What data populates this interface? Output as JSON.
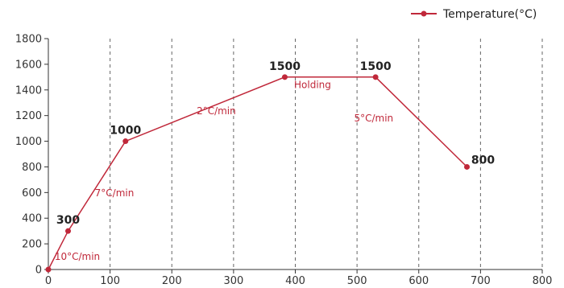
{
  "chart_data": {
    "type": "line",
    "title": "",
    "xlabel": "",
    "ylabel": "",
    "xlim": [
      0,
      800
    ],
    "ylim": [
      0,
      1800
    ],
    "x_ticks": [
      0,
      100,
      200,
      300,
      400,
      500,
      600,
      700,
      800
    ],
    "y_ticks": [
      0,
      200,
      400,
      600,
      800,
      1000,
      1200,
      1400,
      1600,
      1800
    ],
    "grid": "vertical-dashed",
    "legend_position": "top-right",
    "series": [
      {
        "name": "Temperature(°C)",
        "color": "#c0283a",
        "x": [
          0,
          32,
          125,
          383,
          530,
          678
        ],
        "y": [
          0,
          300,
          1000,
          1500,
          1500,
          800
        ]
      }
    ],
    "point_labels": [
      {
        "x": 32,
        "y": 300,
        "text": "300"
      },
      {
        "x": 125,
        "y": 1000,
        "text": "1000"
      },
      {
        "x": 383,
        "y": 1500,
        "text": "1500"
      },
      {
        "x": 530,
        "y": 1500,
        "text": "1500"
      },
      {
        "x": 678,
        "y": 800,
        "text": "800"
      }
    ],
    "annotations": [
      {
        "text": "10°C/min",
        "x": 47,
        "y": 100
      },
      {
        "text": "7°C/min",
        "x": 107,
        "y": 595
      },
      {
        "text": "2°C/min",
        "x": 272,
        "y": 1235
      },
      {
        "text": "Holding",
        "x": 428,
        "y": 1440
      },
      {
        "text": "5°C/min",
        "x": 527,
        "y": 1180
      }
    ]
  }
}
